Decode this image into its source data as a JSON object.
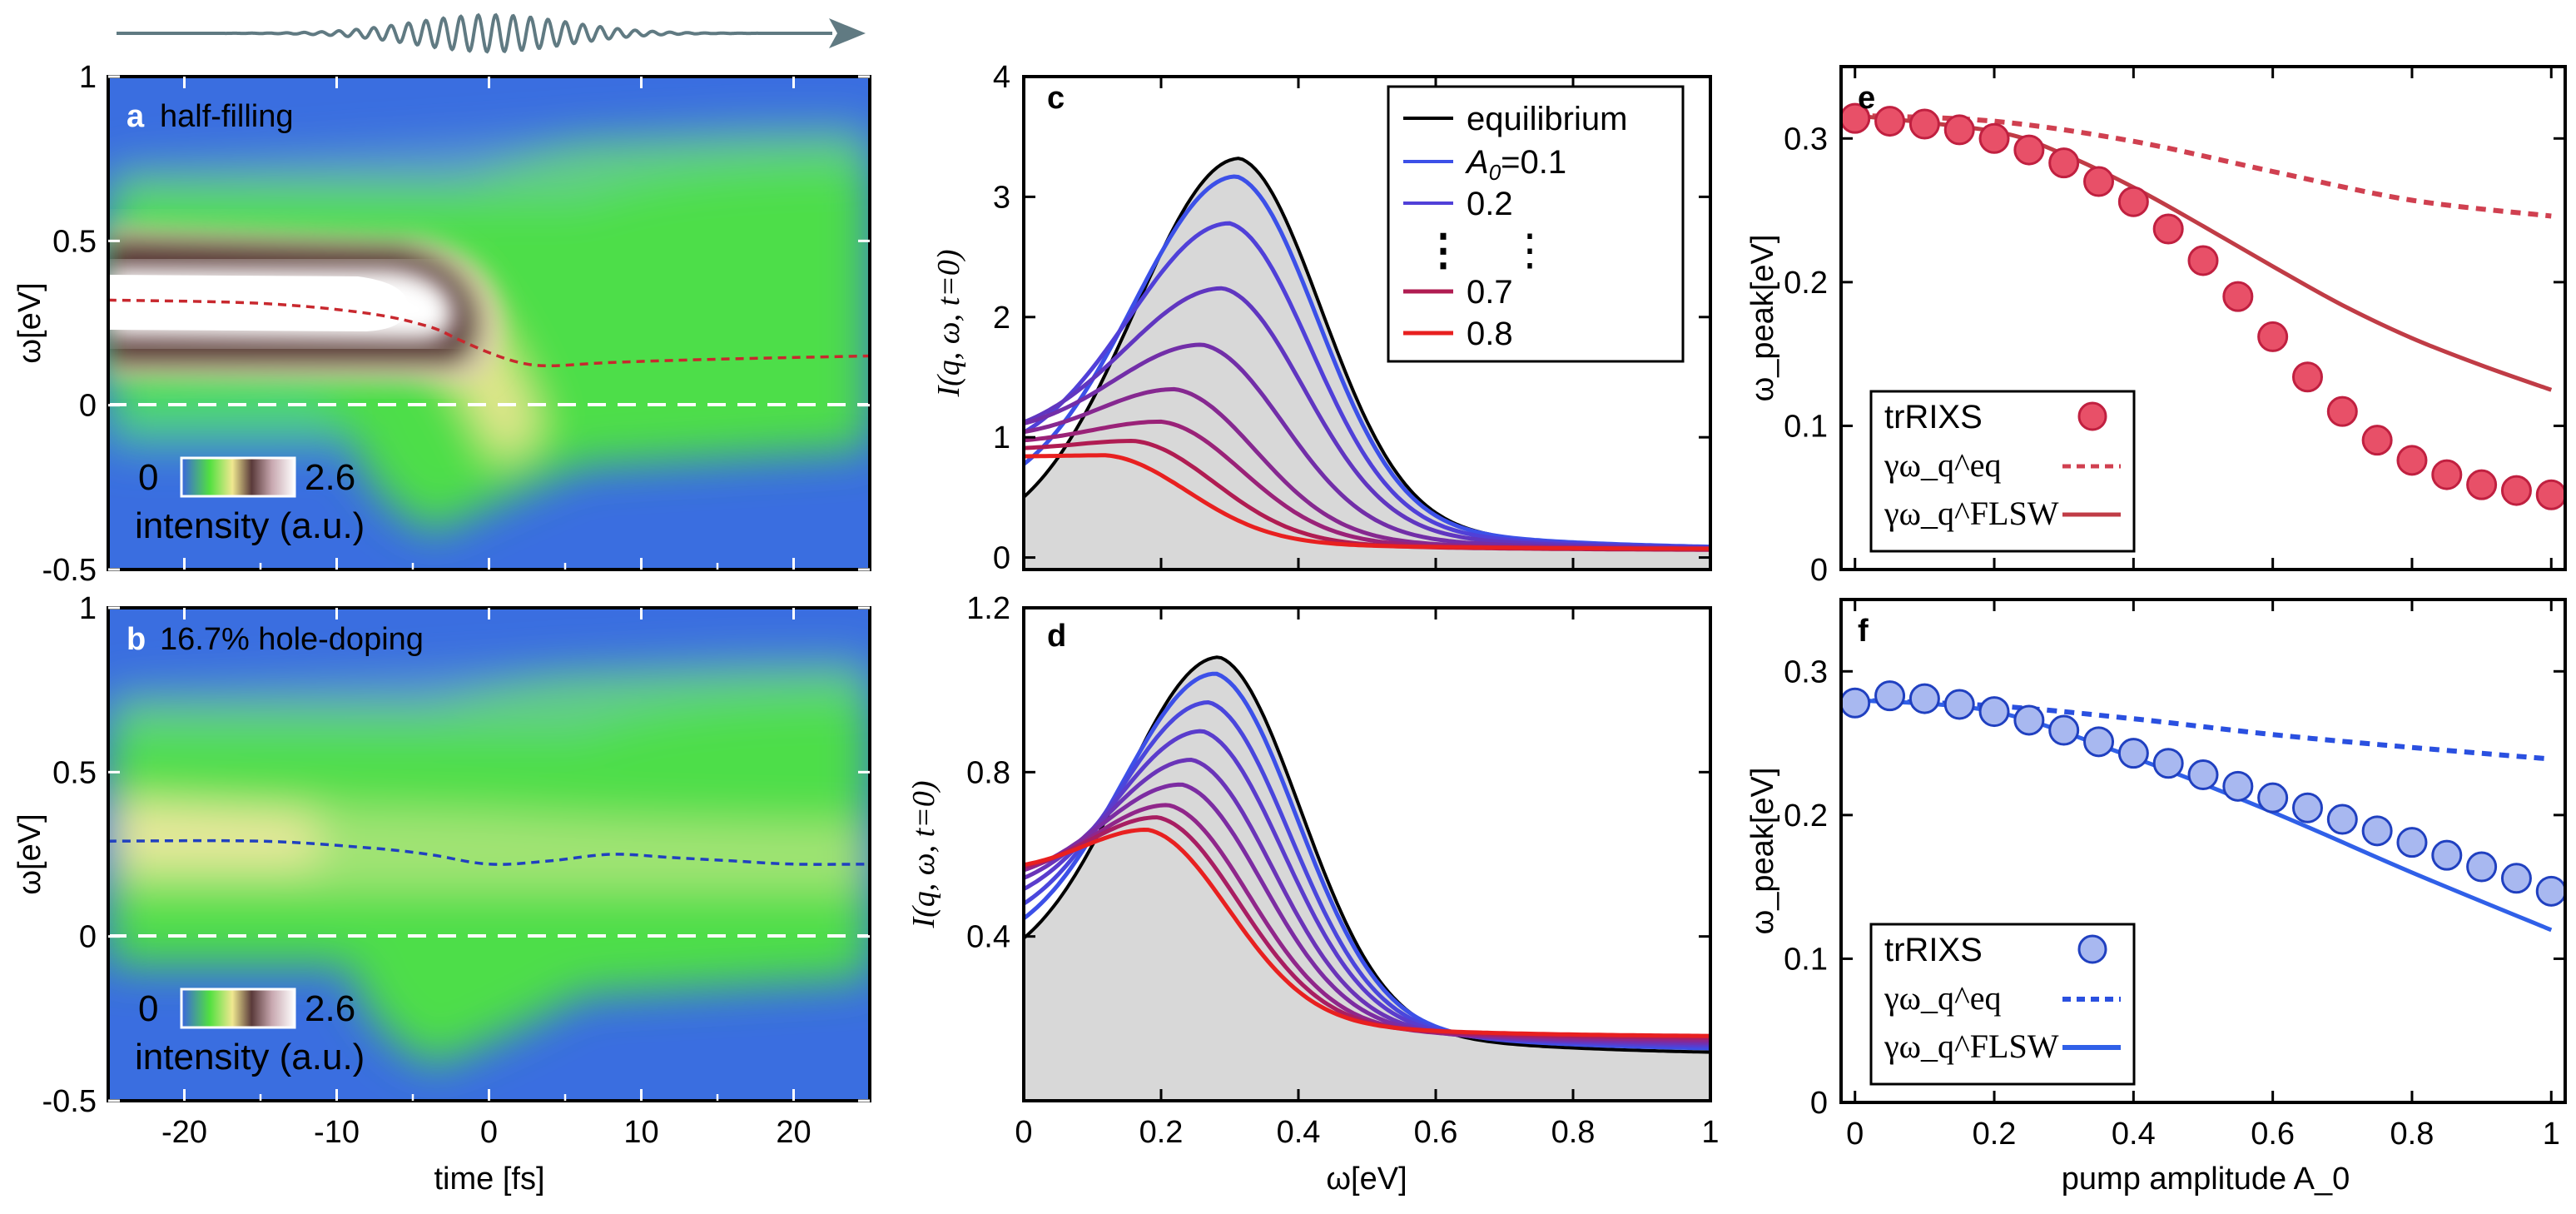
{
  "chart_data": [
    {
      "id": "a",
      "type": "heatmap",
      "panel_label": "a",
      "title": "half-filling",
      "xlabel": "time [fs]",
      "ylabel": "ω[eV]",
      "xlim": [
        -25,
        25
      ],
      "ylim": [
        -0.5,
        1
      ],
      "xticks": [
        "-20",
        "-10",
        "0",
        "10",
        "20"
      ],
      "yticks": [
        "-0.5",
        "0",
        "0.5",
        "1"
      ],
      "colorbar": {
        "min_label": "0",
        "max_label": "2.6",
        "label": "intensity (a.u.)"
      },
      "peak_trace": {
        "color": "#c8282e",
        "x": [
          -25,
          -15,
          -8,
          -4,
          -2,
          0,
          2,
          4,
          8,
          15,
          25
        ],
        "y": [
          0.32,
          0.31,
          0.28,
          0.24,
          0.2,
          0.16,
          0.13,
          0.12,
          0.13,
          0.14,
          0.15
        ]
      },
      "zero_line": 0
    },
    {
      "id": "b",
      "type": "heatmap",
      "panel_label": "b",
      "title": "16.7% hole-doping",
      "xlabel": "time [fs]",
      "ylabel": "ω[eV]",
      "xlim": [
        -25,
        25
      ],
      "ylim": [
        -0.5,
        1
      ],
      "xticks": [
        "-20",
        "-10",
        "0",
        "10",
        "20"
      ],
      "yticks": [
        "-0.5",
        "0",
        "0.5",
        "1"
      ],
      "colorbar": {
        "min_label": "0",
        "max_label": "2.6",
        "label": "intensity (a.u.)"
      },
      "peak_trace": {
        "color": "#2040c0",
        "x": [
          -25,
          -15,
          -8,
          -4,
          0,
          4,
          8,
          12,
          16,
          20,
          25
        ],
        "y": [
          0.29,
          0.29,
          0.27,
          0.25,
          0.22,
          0.23,
          0.25,
          0.24,
          0.23,
          0.22,
          0.22
        ]
      },
      "zero_line": 0
    },
    {
      "id": "c",
      "type": "line",
      "panel_label": "c",
      "xlabel": "",
      "ylabel": "I(q, ω, t=0)",
      "xlim": [
        0,
        1
      ],
      "ylim": [
        -0.1,
        4
      ],
      "xticks": [],
      "yticks": [
        "0",
        "1",
        "2",
        "3",
        "4"
      ],
      "legend": {
        "placement": "top-right",
        "entries": [
          "equilibrium",
          "A_0=0.1",
          "0.2",
          "⋮",
          "0.7",
          "0.8"
        ],
        "A0_prefix": "A",
        "A0_sub": "0",
        "A0_rest": "=0.1"
      },
      "series": [
        {
          "name": "equilibrium",
          "color": "#000000",
          "peak": 3.32,
          "pos": 0.315,
          "tail": 0.05,
          "low": 0.12
        },
        {
          "name": "0.1",
          "color": "#3c50e8",
          "peak": 3.17,
          "pos": 0.31,
          "tail": 0.06,
          "low": 0.45
        },
        {
          "name": "0.2",
          "color": "#5040d8",
          "peak": 2.78,
          "pos": 0.3,
          "tail": 0.06,
          "low": 0.8
        },
        {
          "name": "0.3",
          "color": "#6036c0",
          "peak": 2.24,
          "pos": 0.29,
          "tail": 0.06,
          "low": 0.97
        },
        {
          "name": "0.4",
          "color": "#722ea8",
          "peak": 1.77,
          "pos": 0.26,
          "tail": 0.06,
          "low": 1.02
        },
        {
          "name": "0.5",
          "color": "#862890",
          "peak": 1.4,
          "pos": 0.22,
          "tail": 0.06,
          "low": 0.99
        },
        {
          "name": "0.6",
          "color": "#9a2278",
          "peak": 1.13,
          "pos": 0.2,
          "tail": 0.06,
          "low": 0.95
        },
        {
          "name": "0.7",
          "color": "#b01c52",
          "peak": 0.97,
          "pos": 0.16,
          "tail": 0.06,
          "low": 0.9
        },
        {
          "name": "0.8",
          "color": "#e82020",
          "peak": 0.85,
          "pos": 0.12,
          "tail": 0.07,
          "low": 0.84
        }
      ]
    },
    {
      "id": "d",
      "type": "line",
      "panel_label": "d",
      "xlabel": "ω[eV]",
      "ylabel": "I(q, ω, t=0)",
      "xlim": [
        0,
        1
      ],
      "ylim": [
        0,
        1.2
      ],
      "xticks": [
        "0",
        "0.2",
        "0.4",
        "0.6",
        "0.8",
        "1"
      ],
      "yticks": [
        "0.4",
        "0.8",
        "1.2"
      ],
      "series": [
        {
          "name": "equilibrium",
          "color": "#000000",
          "peak": 1.08,
          "pos": 0.285,
          "tail": 0.11,
          "low": 0.3
        },
        {
          "name": "0.1",
          "color": "#3c50e8",
          "peak": 1.04,
          "pos": 0.28,
          "tail": 0.12,
          "low": 0.36
        },
        {
          "name": "0.2",
          "color": "#4a46dc",
          "peak": 0.97,
          "pos": 0.27,
          "tail": 0.125,
          "low": 0.41
        },
        {
          "name": "0.3",
          "color": "#5a3ccc",
          "peak": 0.9,
          "pos": 0.26,
          "tail": 0.13,
          "low": 0.46
        },
        {
          "name": "0.4",
          "color": "#6a34b8",
          "peak": 0.83,
          "pos": 0.245,
          "tail": 0.135,
          "low": 0.5
        },
        {
          "name": "0.5",
          "color": "#7c2ca2",
          "peak": 0.77,
          "pos": 0.23,
          "tail": 0.14,
          "low": 0.53
        },
        {
          "name": "0.6",
          "color": "#90268a",
          "peak": 0.72,
          "pos": 0.21,
          "tail": 0.145,
          "low": 0.54
        },
        {
          "name": "0.7",
          "color": "#a81e62",
          "peak": 0.69,
          "pos": 0.195,
          "tail": 0.15,
          "low": 0.55
        },
        {
          "name": "0.8",
          "color": "#e82020",
          "peak": 0.66,
          "pos": 0.18,
          "tail": 0.155,
          "low": 0.56
        }
      ]
    },
    {
      "id": "e",
      "type": "scatter",
      "panel_label": "e",
      "xlabel": "",
      "ylabel": "ω_peak[eV]",
      "xlim": [
        -0.02,
        1.02
      ],
      "ylim": [
        0,
        0.35
      ],
      "xticks": [],
      "yticks": [
        "0",
        "0.1",
        "0.2",
        "0.3"
      ],
      "legend": {
        "placement": "bottom-left",
        "entries": [
          "trRIXS",
          "γω_q^eq",
          "γω_q^FLSW"
        ]
      },
      "marker_color": "#e85068",
      "x": [
        0,
        0.05,
        0.1,
        0.15,
        0.2,
        0.25,
        0.3,
        0.35,
        0.4,
        0.45,
        0.5,
        0.55,
        0.6,
        0.65,
        0.7,
        0.75,
        0.8,
        0.85,
        0.9,
        0.95,
        1.0
      ],
      "trRIXS": [
        0.314,
        0.312,
        0.31,
        0.306,
        0.3,
        0.292,
        0.283,
        0.27,
        0.256,
        0.237,
        0.215,
        0.19,
        0.162,
        0.134,
        0.11,
        0.09,
        0.076,
        0.066,
        0.059,
        0.055,
        0.052
      ],
      "eq_curve": {
        "color": "#d04050",
        "x": [
          0,
          0.2,
          0.4,
          0.6,
          0.8,
          1.0
        ],
        "y": [
          0.316,
          0.312,
          0.298,
          0.277,
          0.257,
          0.246
        ]
      },
      "flsw_curve": {
        "color": "#c03c46",
        "x": [
          0,
          0.2,
          0.3,
          0.4,
          0.5,
          0.6,
          0.7,
          0.8,
          0.9,
          1.0
        ],
        "y": [
          0.316,
          0.305,
          0.289,
          0.266,
          0.239,
          0.211,
          0.184,
          0.161,
          0.142,
          0.125
        ]
      }
    },
    {
      "id": "f",
      "type": "scatter",
      "panel_label": "f",
      "xlabel": "pump amplitude A_0",
      "ylabel": "ω_peak[eV]",
      "xlim": [
        -0.02,
        1.02
      ],
      "ylim": [
        0,
        0.35
      ],
      "xticks": [
        "0",
        "0.2",
        "0.4",
        "0.6",
        "0.8",
        "1"
      ],
      "yticks": [
        "0",
        "0.1",
        "0.2",
        "0.3"
      ],
      "legend": {
        "placement": "bottom-left",
        "entries": [
          "trRIXS",
          "γω_q^eq",
          "γω_q^FLSW"
        ]
      },
      "marker_color": "#a8b8f0",
      "x": [
        0,
        0.05,
        0.1,
        0.15,
        0.2,
        0.25,
        0.3,
        0.35,
        0.4,
        0.45,
        0.5,
        0.55,
        0.6,
        0.65,
        0.7,
        0.75,
        0.8,
        0.85,
        0.9,
        0.95,
        1.0
      ],
      "trRIXS": [
        0.278,
        0.283,
        0.281,
        0.277,
        0.272,
        0.266,
        0.259,
        0.251,
        0.243,
        0.236,
        0.228,
        0.22,
        0.212,
        0.205,
        0.197,
        0.189,
        0.181,
        0.172,
        0.164,
        0.156,
        0.147
      ],
      "eq_curve": {
        "color": "#2a50e0",
        "x": [
          0,
          0.2,
          0.4,
          0.6,
          0.8,
          1.0
        ],
        "y": [
          0.28,
          0.276,
          0.267,
          0.256,
          0.247,
          0.239
        ]
      },
      "flsw_curve": {
        "color": "#3060e8",
        "x": [
          0,
          0.2,
          0.4,
          0.6,
          0.8,
          1.0
        ],
        "y": [
          0.28,
          0.272,
          0.24,
          0.202,
          0.16,
          0.12
        ]
      }
    }
  ],
  "pump_pulse": {
    "icon": "pump-pulse-waveform-arrow",
    "color": "#607a82"
  }
}
